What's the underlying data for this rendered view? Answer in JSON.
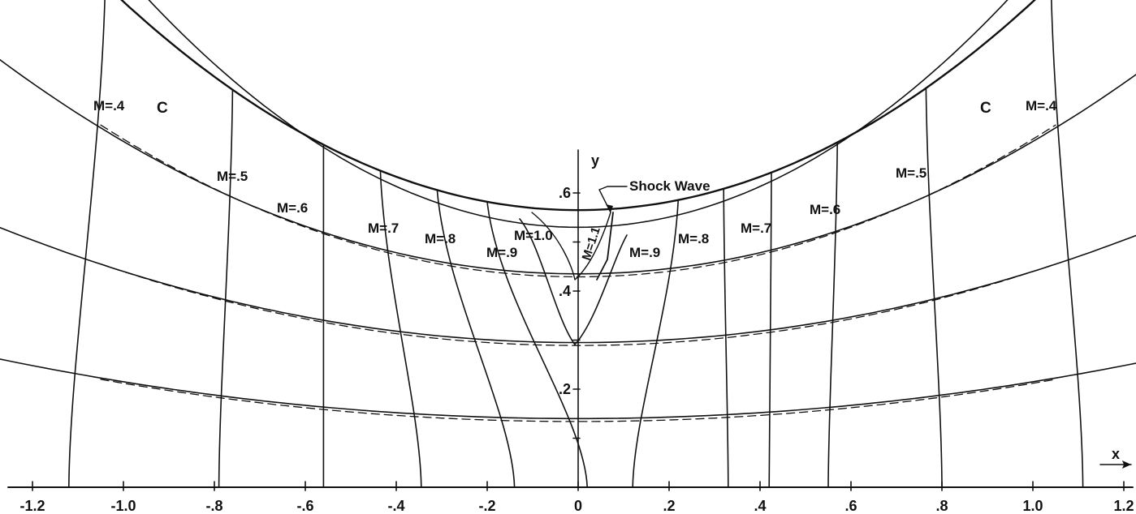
{
  "chart_data": {
    "type": "line",
    "title": "",
    "xlabel": "x",
    "ylabel": "y",
    "xlim": [
      -1.2,
      1.2
    ],
    "ylim": [
      0,
      0.6
    ],
    "x_ticks": [
      {
        "value": -1.2,
        "label": "-1.2"
      },
      {
        "value": -1.0,
        "label": "-1.0"
      },
      {
        "value": -0.8,
        "label": "-.8"
      },
      {
        "value": -0.6,
        "label": "-.6"
      },
      {
        "value": -0.4,
        "label": "-.4"
      },
      {
        "value": -0.2,
        "label": "-.2"
      },
      {
        "value": 0,
        "label": "0"
      },
      {
        "value": 0.2,
        "label": ".2"
      },
      {
        "value": 0.4,
        "label": ".4"
      },
      {
        "value": 0.6,
        "label": ".6"
      },
      {
        "value": 0.8,
        "label": ".8"
      },
      {
        "value": 1.0,
        "label": "1.0"
      },
      {
        "value": 1.2,
        "label": "1.2"
      }
    ],
    "y_ticks": [
      {
        "value": 0.1,
        "label": ""
      },
      {
        "value": 0.2,
        "label": ".2"
      },
      {
        "value": 0.3,
        "label": ""
      },
      {
        "value": 0.4,
        "label": ".4"
      },
      {
        "value": 0.5,
        "label": ""
      },
      {
        "value": 0.6,
        "label": ".6"
      }
    ],
    "wall": {
      "name": "C",
      "y_center": 0.565,
      "curvature": 0.425
    },
    "streamlines": [
      {
        "y_center": 0.53,
        "curvature": 0.52
      },
      {
        "y_center": 0.435,
        "curvature": 0.27
      },
      {
        "y_center": 0.295,
        "curvature": 0.145
      },
      {
        "y_center": 0.14,
        "curvature": 0.075
      }
    ],
    "mach_lines": [
      {
        "label": "M=.4",
        "side": "left",
        "x_wall": -1.04,
        "x_axis": -1.12
      },
      {
        "label": "M=.5",
        "side": "left",
        "x_wall": -0.76,
        "x_axis": -0.79
      },
      {
        "label": "M=.6",
        "side": "left",
        "x_wall": -0.56,
        "x_axis": -0.56
      },
      {
        "label": "M=.7",
        "side": "left",
        "x_wall": -0.435,
        "x_axis": -0.345
      },
      {
        "label": "M=.8",
        "side": "left",
        "x_wall": -0.31,
        "x_axis": -0.14
      },
      {
        "label": "M=.9",
        "side": "left",
        "x_wall": -0.2,
        "x_axis": 0.02
      },
      {
        "label": "M=.9",
        "side": "right",
        "x_wall": 0.22,
        "x_axis": 0.12
      },
      {
        "label": "M=.8",
        "side": "right",
        "x_wall": 0.32,
        "x_axis": 0.33
      },
      {
        "label": "M=.7",
        "side": "right",
        "x_wall": 0.425,
        "x_axis": 0.42
      },
      {
        "label": "M=.6",
        "side": "right",
        "x_wall": 0.57,
        "x_axis": 0.55
      },
      {
        "label": "M=.5",
        "side": "right",
        "x_wall": 0.765,
        "x_axis": 0.8
      },
      {
        "label": "M=.4",
        "side": "right",
        "x_wall": 1.04,
        "x_axis": 1.11
      }
    ],
    "sonic_line": {
      "label": "M=1.0"
    },
    "supersonic_line": {
      "label": "M=1.1"
    },
    "shock": {
      "label": "Shock Wave"
    }
  },
  "labels": {
    "wall_left": "C",
    "wall_right": "C",
    "x_axis_name": "x",
    "y_axis_name": "y"
  }
}
